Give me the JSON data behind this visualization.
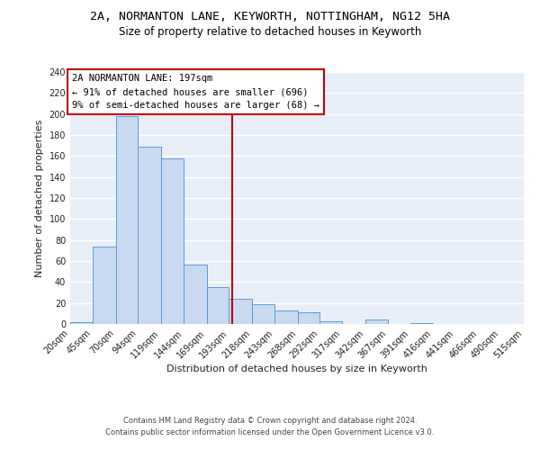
{
  "title": "2A, NORMANTON LANE, KEYWORTH, NOTTINGHAM, NG12 5HA",
  "subtitle": "Size of property relative to detached houses in Keyworth",
  "xlabel": "Distribution of detached houses by size in Keyworth",
  "ylabel": "Number of detached properties",
  "bin_edges": [
    20,
    45,
    70,
    94,
    119,
    144,
    169,
    193,
    218,
    243,
    268,
    292,
    317,
    342,
    367,
    391,
    416,
    441,
    466,
    490,
    515
  ],
  "bar_heights": [
    2,
    74,
    198,
    169,
    158,
    57,
    35,
    24,
    19,
    13,
    11,
    3,
    0,
    4,
    0,
    1,
    0,
    0,
    0,
    0
  ],
  "bar_facecolor": "#c9d9f0",
  "bar_edgecolor": "#5b9bd5",
  "ylim_max": 240,
  "yticks": [
    0,
    20,
    40,
    60,
    80,
    100,
    120,
    140,
    160,
    180,
    200,
    220,
    240
  ],
  "vline_x": 197,
  "vline_color": "#c00000",
  "annotation_line1": "2A NORMANTON LANE: 197sqm",
  "annotation_line2": "← 91% of detached houses are smaller (696)",
  "annotation_line3": "9% of semi-detached houses are larger (68) →",
  "footer_line1": "Contains HM Land Registry data © Crown copyright and database right 2024.",
  "footer_line2": "Contains public sector information licensed under the Open Government Licence v3.0.",
  "bg_color": "#e8eef8",
  "grid_color": "#ffffff",
  "title_fontsize": 9.5,
  "subtitle_fontsize": 8.5,
  "axis_label_fontsize": 8,
  "tick_fontsize": 7,
  "annotation_fontsize": 7.5,
  "footer_fontsize": 6
}
